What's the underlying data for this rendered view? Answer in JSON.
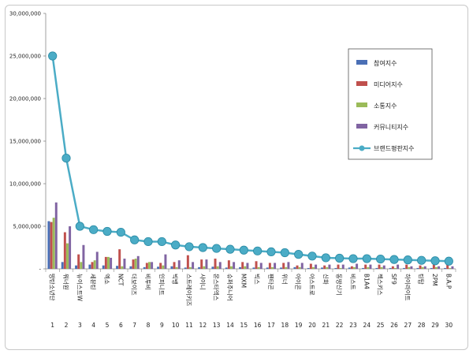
{
  "chart_data": {
    "type": "bar",
    "title": "",
    "xlabel": "",
    "ylabel": "",
    "ylim": [
      0,
      30000000
    ],
    "y_ticks": [
      "-",
      "5,000,000",
      "10,000,000",
      "15,000,000",
      "20,000,000",
      "25,000,000",
      "30,000,000"
    ],
    "y_tick_values": [
      0,
      5000000,
      10000000,
      15000000,
      20000000,
      25000000,
      30000000
    ],
    "grid": false,
    "legend_position": "top-right",
    "categories": [
      "방탄소년단",
      "워너원",
      "뉴이스트W",
      "세븐틴",
      "엑소",
      "NCT",
      "더보이즈",
      "비투비",
      "인피니트",
      "빅뱅",
      "스트레이키즈",
      "샤이니",
      "몬스타엑스",
      "슈퍼주니어",
      "MXM",
      "빅스",
      "펜타곤",
      "위너",
      "아이콘",
      "아스트로",
      "신화",
      "동방신기",
      "비스트",
      "B1A4",
      "젝스키스",
      "SF9",
      "하이라이트",
      "틴탑",
      "2PM",
      "B.A.P"
    ],
    "ranks": [
      "1",
      "2",
      "3",
      "4",
      "5",
      "6",
      "7",
      "8",
      "9",
      "10",
      "11",
      "12",
      "13",
      "14",
      "15",
      "16",
      "17",
      "18",
      "19",
      "20",
      "21",
      "22",
      "23",
      "24",
      "25",
      "26",
      "27",
      "28",
      "29",
      "30"
    ],
    "series": [
      {
        "name": "참여지수",
        "type": "bar",
        "color": "#4a6fb5",
        "values": [
          5600000,
          800000,
          400000,
          500000,
          400000,
          350000,
          300000,
          200000,
          250000,
          300000,
          150000,
          200000,
          250000,
          150000,
          200000,
          150000,
          150000,
          150000,
          200000,
          100000,
          150000,
          100000,
          150000,
          100000,
          100000,
          100000,
          100000,
          100000,
          100000,
          100000
        ]
      },
      {
        "name": "미디어지수",
        "type": "bar",
        "color": "#c0504d",
        "values": [
          5500000,
          4300000,
          1700000,
          800000,
          1400000,
          2300000,
          1100000,
          700000,
          700000,
          800000,
          1600000,
          1100000,
          1200000,
          1000000,
          800000,
          900000,
          700000,
          700000,
          400000,
          600000,
          400000,
          500000,
          300000,
          500000,
          500000,
          300000,
          500000,
          400000,
          500000,
          600000
        ]
      },
      {
        "name": "소통지수",
        "type": "bar",
        "color": "#9bbb59",
        "values": [
          6000000,
          3000000,
          800000,
          1000000,
          1400000,
          300000,
          1200000,
          800000,
          400000,
          200000,
          200000,
          300000,
          300000,
          300000,
          300000,
          200000,
          200000,
          200000,
          200000,
          200000,
          200000,
          100000,
          200000,
          200000,
          200000,
          100000,
          200000,
          200000,
          200000,
          100000
        ]
      },
      {
        "name": "커뮤니티지수",
        "type": "bar",
        "color": "#8064a2",
        "values": [
          7800000,
          5000000,
          2800000,
          2000000,
          1300000,
          1200000,
          1500000,
          800000,
          1700000,
          1000000,
          800000,
          1100000,
          800000,
          800000,
          700000,
          700000,
          700000,
          800000,
          700000,
          500000,
          500000,
          500000,
          600000,
          500000,
          400000,
          500000,
          300000,
          300000,
          300000,
          300000
        ]
      },
      {
        "name": "브랜드평판지수",
        "type": "line",
        "color": "#4bacc6",
        "values": [
          25000000,
          13000000,
          5000000,
          4600000,
          4400000,
          4300000,
          3400000,
          3200000,
          3200000,
          2800000,
          2600000,
          2500000,
          2400000,
          2300000,
          2200000,
          2100000,
          2000000,
          1900000,
          1700000,
          1500000,
          1300000,
          1250000,
          1200000,
          1200000,
          1150000,
          1100000,
          1050000,
          1000000,
          950000,
          900000
        ]
      }
    ]
  }
}
